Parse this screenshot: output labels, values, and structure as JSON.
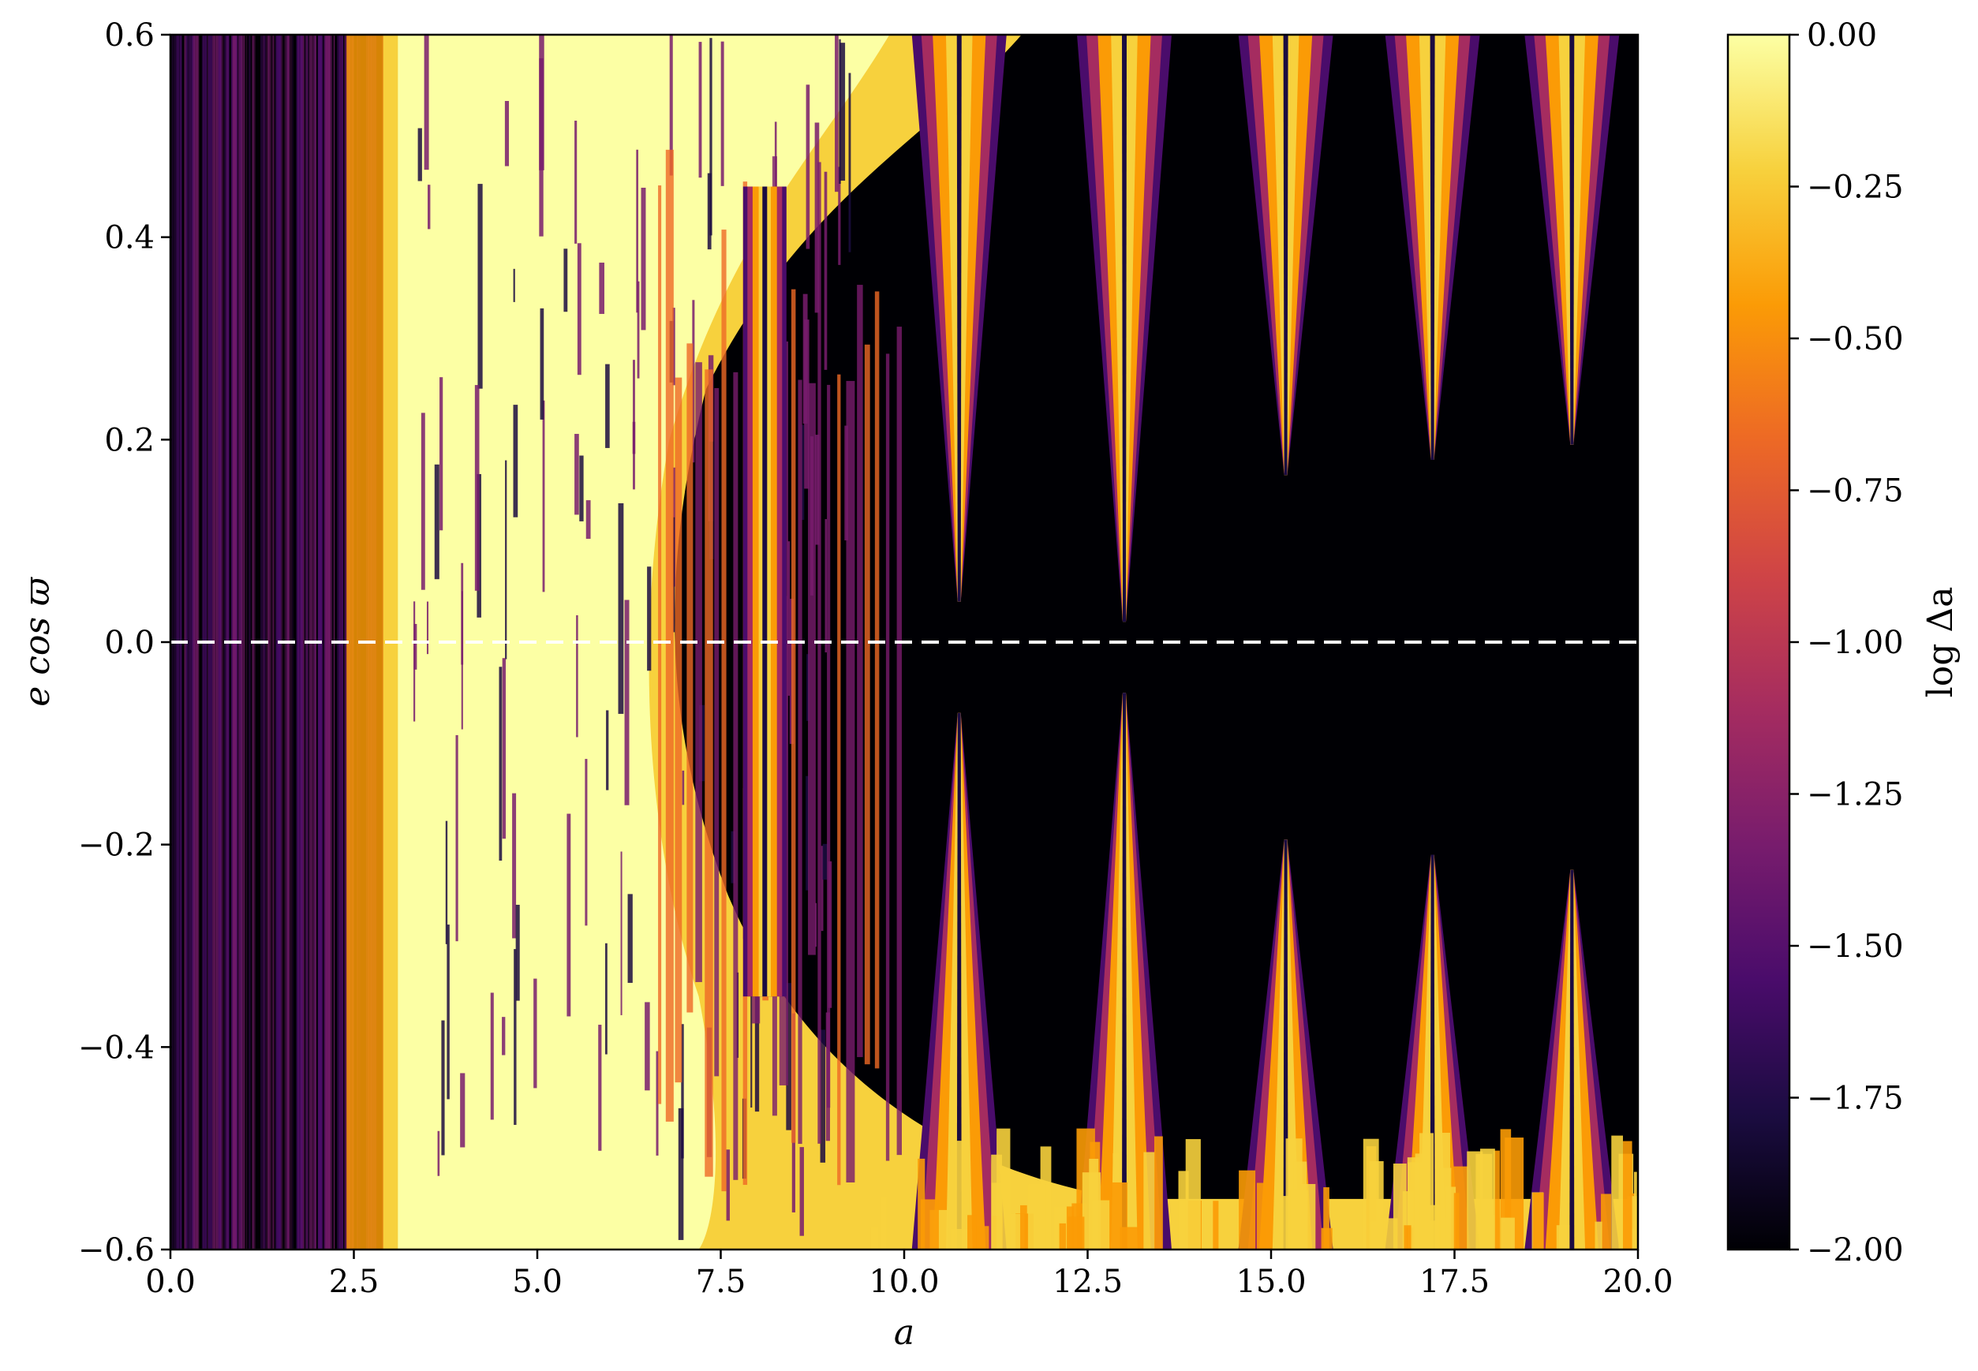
{
  "chart_data": {
    "type": "heatmap",
    "title": "",
    "xlabel": "a",
    "ylabel": "e cos ϖ",
    "xlim": [
      0.0,
      20.0
    ],
    "ylim": [
      -0.6,
      0.6
    ],
    "x_ticks": [
      "0.0",
      "2.5",
      "5.0",
      "7.5",
      "10.0",
      "12.5",
      "15.0",
      "17.5",
      "20.0"
    ],
    "x_tick_values": [
      0.0,
      2.5,
      5.0,
      7.5,
      10.0,
      12.5,
      15.0,
      17.5,
      20.0
    ],
    "y_ticks": [
      "−0.6",
      "−0.4",
      "−0.2",
      "0.0",
      "0.2",
      "0.4",
      "0.6"
    ],
    "y_tick_values": [
      -0.6,
      -0.4,
      -0.2,
      0.0,
      0.2,
      0.4,
      0.6
    ],
    "reference_line": {
      "y": 0.0,
      "style": "dashed",
      "color": "#ffffff"
    },
    "colorbar": {
      "label": "log Δa",
      "colormap": "inferno",
      "range": [
        -2.0,
        0.0
      ],
      "tick_labels": [
        "0.00",
        "−0.25",
        "−0.50",
        "−0.75",
        "−1.00",
        "−1.25",
        "−1.50",
        "−1.75",
        "−2.00"
      ],
      "tick_values": [
        0.0,
        -0.25,
        -0.5,
        -0.75,
        -1.0,
        -1.25,
        -1.5,
        -1.75,
        -2.0
      ]
    },
    "features": {
      "chaotic_region_a": [
        2.4,
        7.5
      ],
      "resonance_tongue_centers_a": [
        8.1,
        10.75,
        13.0,
        15.2,
        17.2,
        19.1
      ],
      "low_value_region_a": [
        0.0,
        2.4
      ]
    }
  },
  "colors": {
    "inferno_stops": [
      "#000004",
      "#1b0c41",
      "#4a0c6b",
      "#781c6d",
      "#a52c60",
      "#cf4446",
      "#ed6925",
      "#fb9b06",
      "#f7d13d",
      "#fcffa4"
    ],
    "dashed_line": "#ffffff",
    "axes": "#000000"
  }
}
